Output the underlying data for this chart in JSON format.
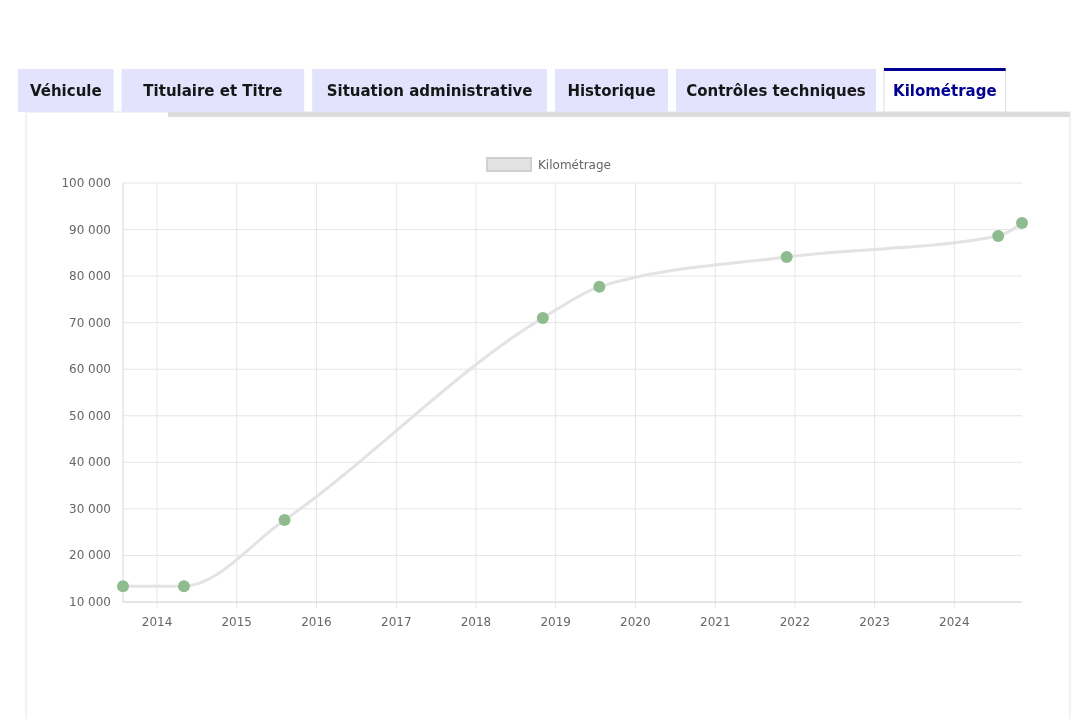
{
  "chart_data": {
    "type": "line",
    "annotations": [
      "Véhicule",
      "Titulaire et Titre",
      "Situation administrative",
      "Historique",
      "Contrôles techniques",
      "Kilométrage"
    ],
    "x": [
      "2013-07-29",
      "2014-05-04",
      "2015-08-08",
      "2018-11-03",
      "2019-07-20",
      "2021-11-24",
      "2024-07-20",
      "2024-11-06"
    ],
    "series": [
      {
        "name": "Kilométrage",
        "color": "#e3e3e3",
        "colors": [
          "#8fbc8f",
          "#8fbc8f",
          "#8fbc8f",
          "#8fbc8f",
          "#8fbc8f",
          "#8fbc8f",
          "#8fbc8f",
          "#8fbc8f"
        ],
        "values": [
          13400,
          13400,
          27600,
          71000,
          77700,
          84100,
          88600,
          91400
        ]
      }
    ],
    "xlim": [
      "2013-07-29",
      "2024-11-06"
    ],
    "xticks": [
      "2014",
      "2015",
      "2016",
      "2017",
      "2018",
      "2019",
      "2020",
      "2021",
      "2022",
      "2023",
      "2024"
    ],
    "ylim": [
      10000,
      100000
    ],
    "yticks": [
      {
        "value": 10000,
        "label": "10 000"
      },
      {
        "value": 20000,
        "label": "20 000"
      },
      {
        "value": 30000,
        "label": "30 000"
      },
      {
        "value": 40000,
        "label": "40 000"
      },
      {
        "value": 50000,
        "label": "50 000"
      },
      {
        "value": 60000,
        "label": "60 000"
      },
      {
        "value": 70000,
        "label": "70 000"
      },
      {
        "value": 80000,
        "label": "80 000"
      },
      {
        "value": 90000,
        "label": "90 000"
      },
      {
        "value": 100000,
        "label": "100 000"
      }
    ],
    "grid": true,
    "legend": "top",
    "marker": "circle",
    "line_style": "solid"
  }
}
